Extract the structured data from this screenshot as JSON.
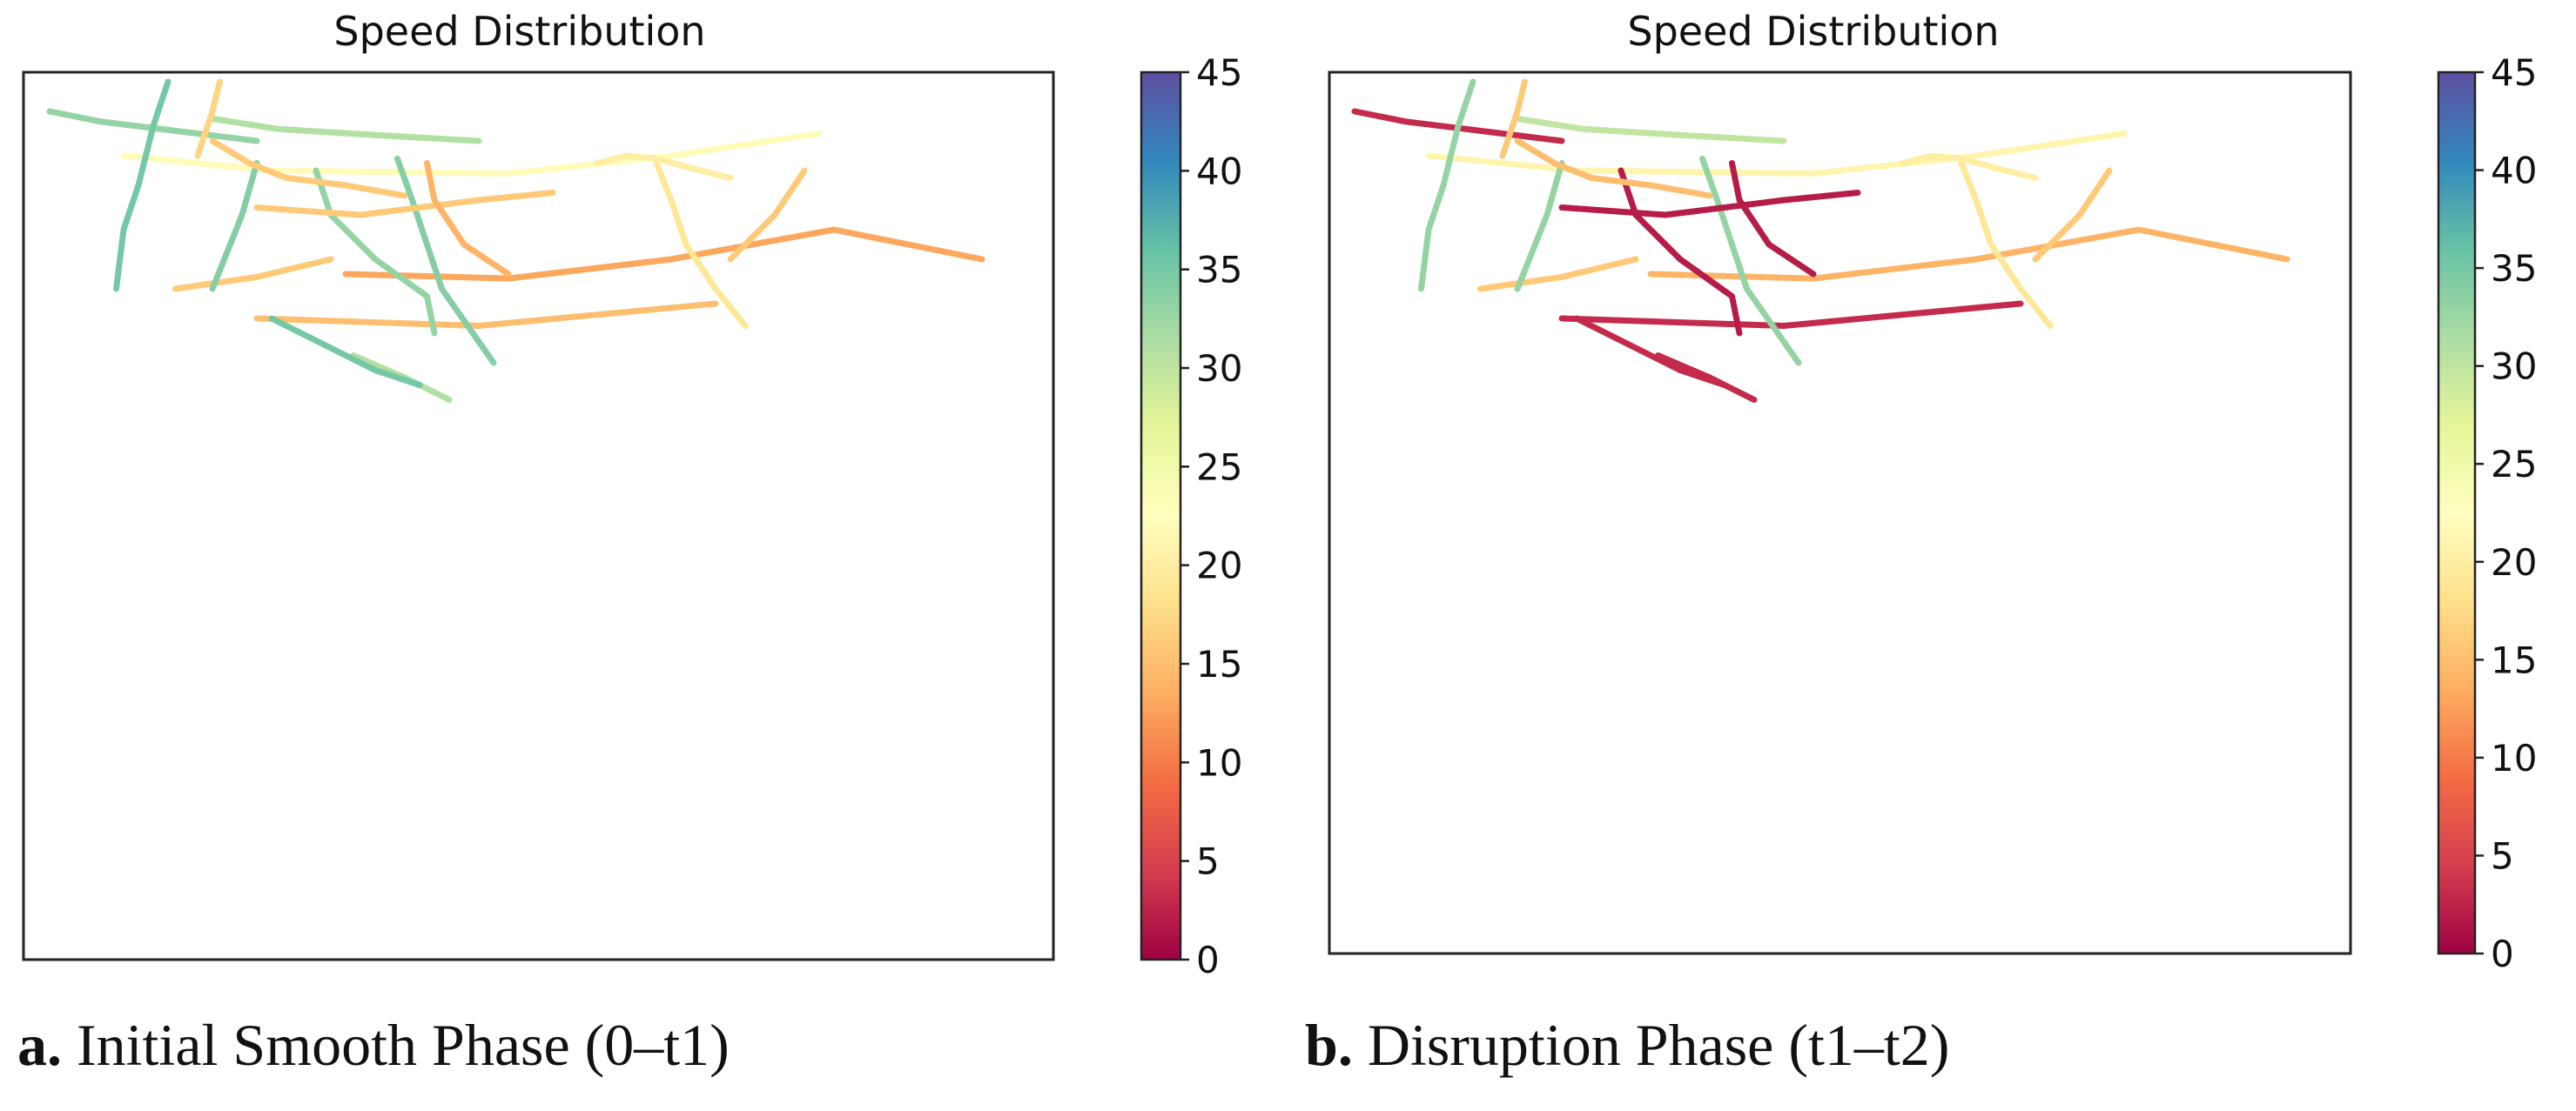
{
  "chart_data": [
    {
      "type": "heatmap",
      "subtype": "road-network speed map",
      "panel_label": "a.",
      "caption": "Initial Smooth Phase (0–t1)",
      "title": "Speed Distribution",
      "colorbar": {
        "colormap": "Spectral",
        "range": [
          0,
          45
        ],
        "ticks": [
          "0",
          "5",
          "10",
          "15",
          "20",
          "25",
          "30",
          "35",
          "40",
          "45"
        ]
      },
      "roads": [
        {
          "id": "r1",
          "points": [
            [
              10,
              40
            ],
            [
              45,
              47
            ],
            [
              110,
              55
            ],
            [
              150,
              60
            ]
          ],
          "speed": 33
        },
        {
          "id": "r2",
          "points": [
            [
              60,
              70
            ],
            [
              160,
              80
            ],
            [
              320,
              82
            ],
            [
              430,
              70
            ],
            [
              530,
              55
            ]
          ],
          "speed": 22
        },
        {
          "id": "r3",
          "points": [
            [
              120,
              45
            ],
            [
              165,
              52
            ],
            [
              230,
              56
            ],
            [
              300,
              60
            ]
          ],
          "speed": 31
        },
        {
          "id": "r4",
          "points": [
            [
              210,
              150
            ],
            [
              320,
              153
            ],
            [
              430,
              140
            ],
            [
              540,
              120
            ],
            [
              640,
              140
            ]
          ],
          "speed": 13
        },
        {
          "id": "r5",
          "points": [
            [
              95,
              160
            ],
            [
              150,
              152
            ],
            [
              200,
              140
            ]
          ],
          "speed": 16
        },
        {
          "id": "r6",
          "points": [
            [
              150,
              180
            ],
            [
              300,
              185
            ],
            [
              460,
              170
            ]
          ],
          "speed": 15
        },
        {
          "id": "r7",
          "points": [
            [
              90,
              20
            ],
            [
              80,
              50
            ],
            [
              70,
              90
            ],
            [
              60,
              120
            ],
            [
              55,
              160
            ]
          ],
          "speed": 35
        },
        {
          "id": "r8",
          "points": [
            [
              150,
              75
            ],
            [
              140,
              110
            ],
            [
              120,
              160
            ]
          ],
          "speed": 34
        },
        {
          "id": "r9",
          "points": [
            [
              190,
              80
            ],
            [
              200,
              110
            ],
            [
              230,
              140
            ],
            [
              265,
              165
            ],
            [
              270,
              190
            ]
          ],
          "speed": 33
        },
        {
          "id": "r10",
          "points": [
            [
              245,
              72
            ],
            [
              255,
              100
            ],
            [
              265,
              130
            ],
            [
              275,
              160
            ],
            [
              310,
              210
            ]
          ],
          "speed": 34
        },
        {
          "id": "r11",
          "points": [
            [
              150,
              105
            ],
            [
              220,
              110
            ],
            [
              300,
              100
            ],
            [
              350,
              95
            ]
          ],
          "speed": 16
        },
        {
          "id": "r12",
          "points": [
            [
              215,
              205
            ],
            [
              250,
              220
            ],
            [
              280,
              235
            ]
          ],
          "speed": 31
        },
        {
          "id": "r13",
          "points": [
            [
              120,
              60
            ],
            [
              145,
              75
            ],
            [
              170,
              85
            ],
            [
              210,
              90
            ],
            [
              250,
              97
            ]
          ],
          "speed": 16
        },
        {
          "id": "r14",
          "points": [
            [
              265,
              75
            ],
            [
              270,
              100
            ],
            [
              290,
              130
            ],
            [
              320,
              150
            ]
          ],
          "speed": 14
        },
        {
          "id": "r15",
          "points": [
            [
              420,
              75
            ],
            [
              430,
              100
            ],
            [
              440,
              130
            ],
            [
              460,
              160
            ],
            [
              480,
              185
            ]
          ],
          "speed": 19
        },
        {
          "id": "r16",
          "points": [
            [
              520,
              80
            ],
            [
              500,
              110
            ],
            [
              470,
              140
            ]
          ],
          "speed": 16
        },
        {
          "id": "r17",
          "points": [
            [
              380,
              75
            ],
            [
              400,
              70
            ],
            [
              420,
              72
            ],
            [
              450,
              80
            ],
            [
              470,
              85
            ]
          ],
          "speed": 20
        },
        {
          "id": "r18",
          "points": [
            [
              110,
              70
            ],
            [
              120,
              40
            ],
            [
              125,
              20
            ]
          ],
          "speed": 17
        },
        {
          "id": "r19",
          "points": [
            [
              160,
              180
            ],
            [
              190,
              195
            ],
            [
              230,
              215
            ],
            [
              260,
              225
            ]
          ],
          "speed": 35
        }
      ]
    },
    {
      "type": "heatmap",
      "subtype": "road-network speed map",
      "panel_label": "b.",
      "caption": "Disruption Phase (t1–t2)",
      "title": "Speed Distribution",
      "colorbar": {
        "colormap": "Spectral",
        "range": [
          0,
          45
        ],
        "ticks": [
          "0",
          "5",
          "10",
          "15",
          "20",
          "25",
          "30",
          "35",
          "40",
          "45"
        ]
      },
      "roads": [
        {
          "id": "r1",
          "points": [
            [
              10,
              40
            ],
            [
              45,
              47
            ],
            [
              110,
              55
            ],
            [
              150,
              60
            ]
          ],
          "speed": 3
        },
        {
          "id": "r2",
          "points": [
            [
              60,
              70
            ],
            [
              160,
              80
            ],
            [
              320,
              82
            ],
            [
              430,
              70
            ],
            [
              530,
              55
            ]
          ],
          "speed": 21
        },
        {
          "id": "r3",
          "points": [
            [
              120,
              45
            ],
            [
              165,
              52
            ],
            [
              230,
              56
            ],
            [
              300,
              60
            ]
          ],
          "speed": 30
        },
        {
          "id": "r4",
          "points": [
            [
              210,
              150
            ],
            [
              320,
              153
            ],
            [
              430,
              140
            ],
            [
              540,
              120
            ],
            [
              640,
              140
            ]
          ],
          "speed": 14
        },
        {
          "id": "r5",
          "points": [
            [
              95,
              160
            ],
            [
              150,
              152
            ],
            [
              200,
              140
            ]
          ],
          "speed": 16
        },
        {
          "id": "r6",
          "points": [
            [
              150,
              180
            ],
            [
              300,
              185
            ],
            [
              460,
              170
            ]
          ],
          "speed": 3
        },
        {
          "id": "r7",
          "points": [
            [
              90,
              20
            ],
            [
              80,
              50
            ],
            [
              70,
              90
            ],
            [
              60,
              120
            ],
            [
              55,
              160
            ]
          ],
          "speed": 33
        },
        {
          "id": "r8",
          "points": [
            [
              150,
              75
            ],
            [
              140,
              110
            ],
            [
              120,
              160
            ]
          ],
          "speed": 33
        },
        {
          "id": "r9",
          "points": [
            [
              190,
              80
            ],
            [
              200,
              110
            ],
            [
              230,
              140
            ],
            [
              265,
              165
            ],
            [
              270,
              190
            ]
          ],
          "speed": 2
        },
        {
          "id": "r10",
          "points": [
            [
              245,
              72
            ],
            [
              255,
              100
            ],
            [
              265,
              130
            ],
            [
              275,
              160
            ],
            [
              310,
              210
            ]
          ],
          "speed": 33
        },
        {
          "id": "r11",
          "points": [
            [
              150,
              105
            ],
            [
              220,
              110
            ],
            [
              300,
              100
            ],
            [
              350,
              95
            ]
          ],
          "speed": 2
        },
        {
          "id": "r12",
          "points": [
            [
              215,
              205
            ],
            [
              250,
              220
            ],
            [
              280,
              235
            ]
          ],
          "speed": 3
        },
        {
          "id": "r13",
          "points": [
            [
              120,
              60
            ],
            [
              145,
              75
            ],
            [
              170,
              85
            ],
            [
              210,
              90
            ],
            [
              250,
              97
            ]
          ],
          "speed": 15
        },
        {
          "id": "r14",
          "points": [
            [
              265,
              75
            ],
            [
              270,
              100
            ],
            [
              290,
              130
            ],
            [
              320,
              150
            ]
          ],
          "speed": 2
        },
        {
          "id": "r15",
          "points": [
            [
              420,
              75
            ],
            [
              430,
              100
            ],
            [
              440,
              130
            ],
            [
              460,
              160
            ],
            [
              480,
              185
            ]
          ],
          "speed": 19
        },
        {
          "id": "r16",
          "points": [
            [
              520,
              80
            ],
            [
              500,
              110
            ],
            [
              470,
              140
            ]
          ],
          "speed": 16
        },
        {
          "id": "r17",
          "points": [
            [
              380,
              75
            ],
            [
              400,
              70
            ],
            [
              420,
              72
            ],
            [
              450,
              80
            ],
            [
              470,
              85
            ]
          ],
          "speed": 20
        },
        {
          "id": "r18",
          "points": [
            [
              110,
              70
            ],
            [
              120,
              40
            ],
            [
              125,
              20
            ]
          ],
          "speed": 16
        },
        {
          "id": "r19",
          "points": [
            [
              160,
              180
            ],
            [
              190,
              195
            ],
            [
              230,
              215
            ],
            [
              260,
              225
            ]
          ],
          "speed": 3
        }
      ]
    }
  ]
}
